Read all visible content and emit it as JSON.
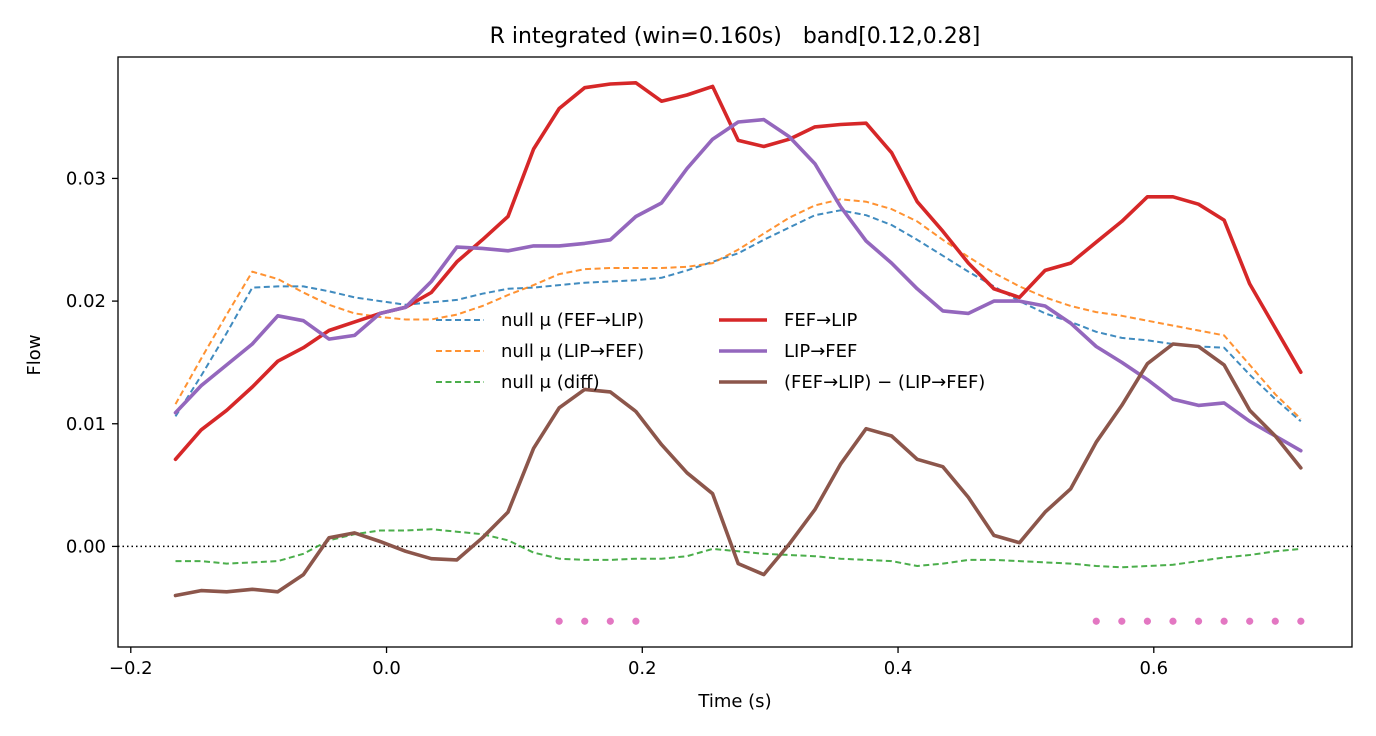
{
  "chart_data": {
    "type": "line",
    "title": "R integrated (win=0.160s)   band[0.12,0.28]",
    "xlabel": "Time (s)",
    "ylabel": "Flow",
    "xlim": [
      -0.21,
      0.755
    ],
    "ylim": [
      -0.0082,
      0.0399
    ],
    "xticks": [
      -0.2,
      0.0,
      0.2,
      0.4,
      0.6
    ],
    "xtick_labels": [
      "−0.2",
      "0.0",
      "0.2",
      "0.4",
      "0.6"
    ],
    "yticks": [
      0.0,
      0.01,
      0.02,
      0.03
    ],
    "ytick_labels": [
      "0.00",
      "0.01",
      "0.02",
      "0.03"
    ],
    "zero_line": true,
    "grid": false,
    "legend_position": "center",
    "x": [
      -0.165,
      -0.145,
      -0.125,
      -0.105,
      -0.085,
      -0.065,
      -0.045,
      -0.025,
      -0.005,
      0.015,
      0.035,
      0.055,
      0.075,
      0.095,
      0.115,
      0.135,
      0.155,
      0.175,
      0.195,
      0.215,
      0.235,
      0.255,
      0.275,
      0.295,
      0.315,
      0.335,
      0.355,
      0.375,
      0.395,
      0.415,
      0.435,
      0.455,
      0.475,
      0.495,
      0.515,
      0.535,
      0.555,
      0.575,
      0.595,
      0.615,
      0.635,
      0.655,
      0.675,
      0.695,
      0.715
    ],
    "series": [
      {
        "name": "null μ (FEF→LIP)",
        "style": "dashed",
        "color": "#1f77b4",
        "values": [
          0.0106,
          0.0139,
          0.0174,
          0.0211,
          0.0212,
          0.0212,
          0.0208,
          0.0203,
          0.02,
          0.0197,
          0.0199,
          0.0201,
          0.0206,
          0.021,
          0.0211,
          0.0213,
          0.0215,
          0.0216,
          0.0217,
          0.0219,
          0.0225,
          0.0232,
          0.0239,
          0.025,
          0.026,
          0.027,
          0.0274,
          0.027,
          0.0262,
          0.025,
          0.0237,
          0.0224,
          0.0212,
          0.02,
          0.019,
          0.0183,
          0.0175,
          0.017,
          0.0168,
          0.0165,
          0.0163,
          0.0162,
          0.014,
          0.012,
          0.0102
        ]
      },
      {
        "name": "null μ (LIP→FEF)",
        "style": "dashed",
        "color": "#ff7f0e",
        "values": [
          0.0116,
          0.0153,
          0.0189,
          0.0224,
          0.0218,
          0.0207,
          0.0197,
          0.019,
          0.0187,
          0.0185,
          0.0185,
          0.0189,
          0.0196,
          0.0205,
          0.0213,
          0.0222,
          0.0226,
          0.0227,
          0.0227,
          0.0227,
          0.0228,
          0.0231,
          0.0242,
          0.0255,
          0.0268,
          0.0278,
          0.0283,
          0.0281,
          0.0275,
          0.0265,
          0.025,
          0.0236,
          0.0223,
          0.0212,
          0.0203,
          0.0196,
          0.0191,
          0.0188,
          0.0184,
          0.018,
          0.0176,
          0.0172,
          0.0148,
          0.0124,
          0.0104
        ]
      },
      {
        "name": "null μ (diff)",
        "style": "dashed",
        "color": "#2ca02c",
        "values": [
          -0.0012,
          -0.0012,
          -0.0014,
          -0.0013,
          -0.0012,
          -0.0006,
          0.0005,
          0.001,
          0.0013,
          0.0013,
          0.0014,
          0.0012,
          0.001,
          0.0005,
          -0.0005,
          -0.001,
          -0.0011,
          -0.0011,
          -0.001,
          -0.001,
          -0.0008,
          -0.0002,
          -0.0004,
          -0.0006,
          -0.0007,
          -0.0008,
          -0.001,
          -0.0011,
          -0.0012,
          -0.0016,
          -0.0014,
          -0.0011,
          -0.0011,
          -0.0012,
          -0.0013,
          -0.0014,
          -0.0016,
          -0.0017,
          -0.0016,
          -0.0015,
          -0.0012,
          -0.0009,
          -0.0007,
          -0.0004,
          -0.0002
        ]
      },
      {
        "name": "FEF→LIP",
        "style": "solid",
        "color": "#d62728",
        "values": [
          0.0071,
          0.0095,
          0.0111,
          0.013,
          0.0151,
          0.0162,
          0.0176,
          0.0183,
          0.019,
          0.0195,
          0.0207,
          0.0232,
          0.025,
          0.0269,
          0.0324,
          0.0357,
          0.0374,
          0.0377,
          0.0378,
          0.0363,
          0.0368,
          0.0375,
          0.0331,
          0.0326,
          0.0332,
          0.0342,
          0.0344,
          0.0345,
          0.0321,
          0.0281,
          0.0257,
          0.0231,
          0.021,
          0.0203,
          0.0225,
          0.0231,
          0.0248,
          0.0265,
          0.0285,
          0.0285,
          0.0279,
          0.0266,
          0.0214,
          0.0178,
          0.0142
        ]
      },
      {
        "name": "LIP→FEF",
        "style": "solid",
        "color": "#9467bd",
        "values": [
          0.0109,
          0.0131,
          0.0148,
          0.0165,
          0.0188,
          0.0184,
          0.0169,
          0.0172,
          0.019,
          0.0195,
          0.0216,
          0.0244,
          0.0243,
          0.0241,
          0.0245,
          0.0245,
          0.0247,
          0.025,
          0.0269,
          0.028,
          0.0308,
          0.0332,
          0.0346,
          0.0348,
          0.0334,
          0.0312,
          0.0277,
          0.0249,
          0.0231,
          0.021,
          0.0192,
          0.019,
          0.02,
          0.02,
          0.0196,
          0.0182,
          0.0163,
          0.015,
          0.0136,
          0.012,
          0.0115,
          0.0117,
          0.0102,
          0.009,
          0.0078
        ]
      },
      {
        "name": "(FEF→LIP) − (LIP→FEF)",
        "style": "solid",
        "color": "#8c564b",
        "values": [
          -0.004,
          -0.0036,
          -0.0037,
          -0.0035,
          -0.0037,
          -0.0023,
          0.0007,
          0.0011,
          0.0004,
          -0.0004,
          -0.001,
          -0.0011,
          0.0007,
          0.0028,
          0.008,
          0.0113,
          0.0128,
          0.0126,
          0.011,
          0.0083,
          0.006,
          0.0043,
          -0.0014,
          -0.0023,
          0.0002,
          0.003,
          0.0067,
          0.0096,
          0.009,
          0.0071,
          0.0065,
          0.004,
          0.0009,
          0.0003,
          0.0028,
          0.0047,
          0.0085,
          0.0115,
          0.0149,
          0.0165,
          0.0163,
          0.0148,
          0.0111,
          0.009,
          0.0064
        ]
      }
    ],
    "significance_markers": {
      "color": "#e377c2",
      "y": -0.0061,
      "x": [
        0.135,
        0.155,
        0.175,
        0.195,
        0.555,
        0.575,
        0.595,
        0.615,
        0.635,
        0.655,
        0.675,
        0.695,
        0.715
      ]
    }
  }
}
